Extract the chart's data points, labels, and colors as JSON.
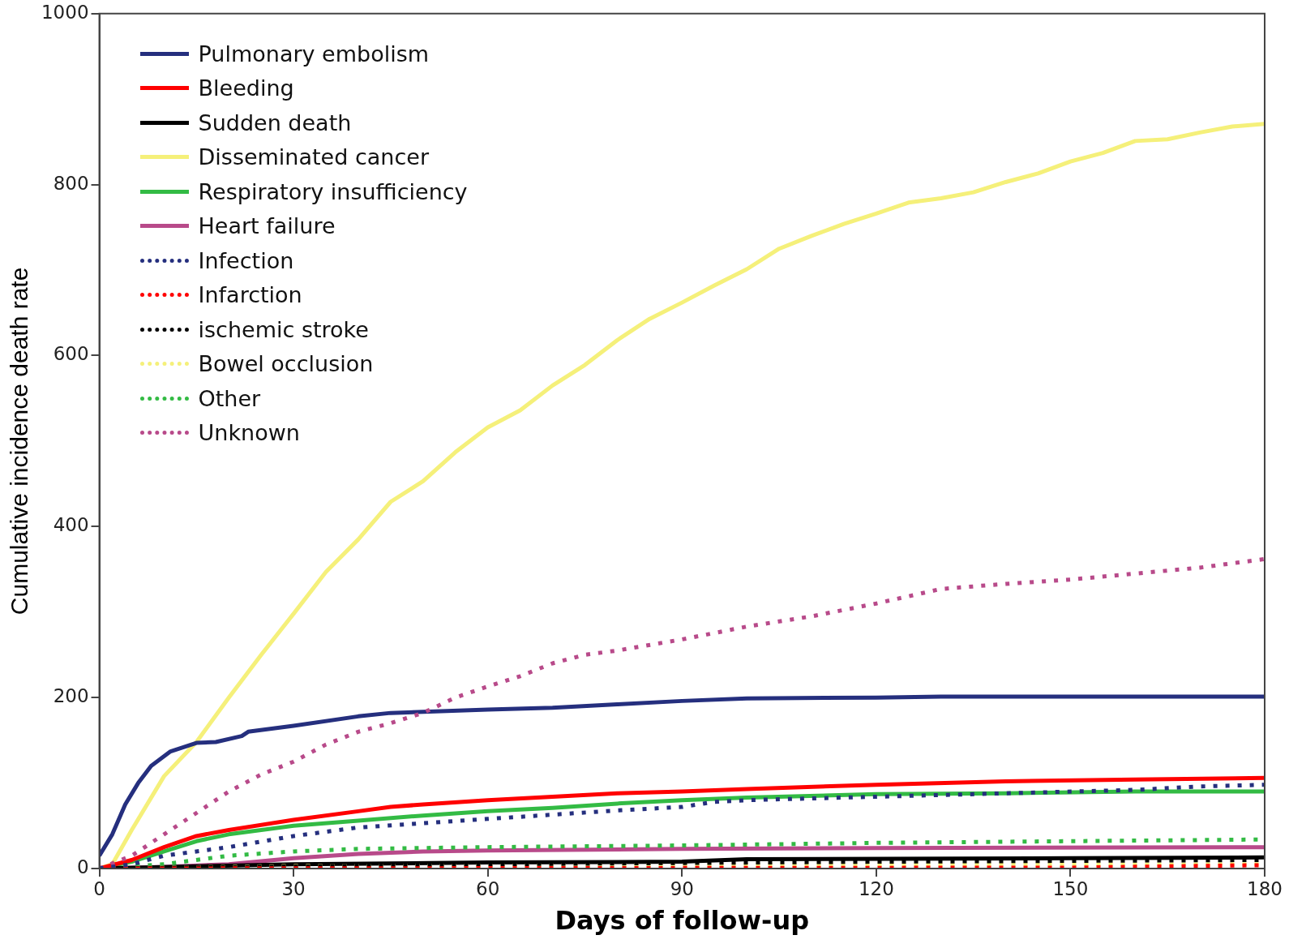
{
  "chart_data": {
    "type": "line",
    "xlabel": "Days of follow-up",
    "ylabel": "Cumulative incidence death rate",
    "xlim": [
      0,
      180
    ],
    "xticks": [
      0,
      30,
      60,
      90,
      120,
      150,
      180
    ],
    "ylim": [
      0,
      1000
    ],
    "yticks": [
      0,
      200,
      400,
      600,
      800,
      1000
    ],
    "grid": false,
    "legend": "top left",
    "marker": "none",
    "series": [
      {
        "name": "Pulmonary embolism",
        "color": "#252f7e",
        "line_style": "solid",
        "x": [
          0,
          2,
          4,
          6,
          8,
          11,
          15,
          18,
          22,
          23,
          30,
          40,
          45,
          60,
          70,
          80,
          90,
          100,
          120,
          130,
          180
        ],
        "values": [
          15,
          40,
          75,
          100,
          120,
          137,
          147,
          148,
          155,
          160,
          167,
          178,
          182,
          186,
          188,
          192,
          196,
          199,
          200,
          201,
          201
        ]
      },
      {
        "name": "Bleeding",
        "color": "#ff0000",
        "line_style": "solid",
        "x": [
          0,
          5,
          10,
          15,
          20,
          30,
          40,
          45,
          50,
          60,
          70,
          80,
          90,
          100,
          120,
          140,
          160,
          180
        ],
        "values": [
          0,
          10,
          25,
          38,
          45,
          57,
          67,
          72,
          75,
          80,
          84,
          88,
          90,
          93,
          98,
          102,
          104,
          106
        ]
      },
      {
        "name": "Sudden death",
        "color": "#000000",
        "line_style": "solid",
        "x": [
          0,
          30,
          60,
          90,
          100,
          150,
          180
        ],
        "values": [
          0,
          5,
          7,
          8,
          11,
          12,
          13
        ]
      },
      {
        "name": "Disseminated cancer",
        "color": "#f5f07a",
        "line_style": "solid",
        "x": [
          0,
          2,
          5,
          10,
          15,
          20,
          25,
          30,
          35,
          40,
          45,
          50,
          55,
          60,
          65,
          70,
          75,
          80,
          85,
          90,
          95,
          100,
          105,
          110,
          115,
          120,
          125,
          130,
          135,
          140,
          145,
          150,
          155,
          160,
          165,
          170,
          175,
          180
        ],
        "values": [
          0,
          5,
          45,
          108,
          148,
          200,
          250,
          298,
          347,
          385,
          429,
          453,
          487,
          516,
          536,
          565,
          589,
          618,
          643,
          662,
          682,
          701,
          725,
          740,
          754,
          766,
          779,
          784,
          791,
          803,
          813,
          827,
          837,
          851,
          853,
          861,
          868,
          871
        ]
      },
      {
        "name": "Respiratory insufficiency",
        "color": "#33bb44",
        "line_style": "solid",
        "x": [
          0,
          5,
          10,
          15,
          20,
          30,
          40,
          50,
          60,
          70,
          80,
          90,
          100,
          120,
          140,
          160,
          180
        ],
        "values": [
          0,
          8,
          20,
          32,
          40,
          50,
          56,
          62,
          67,
          71,
          76,
          80,
          83,
          87,
          88,
          90,
          90
        ]
      },
      {
        "name": "Heart failure",
        "color": "#b84a8a",
        "line_style": "solid",
        "x": [
          0,
          10,
          20,
          30,
          40,
          50,
          60,
          90,
          120,
          180
        ],
        "values": [
          0,
          2,
          5,
          12,
          17,
          20,
          21,
          23,
          24,
          25
        ]
      },
      {
        "name": "Infection",
        "color": "#252f7e",
        "line_style": "dotted",
        "x": [
          0,
          5,
          10,
          20,
          30,
          40,
          50,
          60,
          70,
          80,
          90,
          95,
          100,
          120,
          140,
          160,
          170,
          180
        ],
        "values": [
          0,
          5,
          15,
          25,
          38,
          48,
          53,
          58,
          63,
          68,
          72,
          78,
          80,
          84,
          88,
          92,
          96,
          98
        ]
      },
      {
        "name": "Infarction",
        "color": "#ff0000",
        "line_style": "dotted",
        "x": [
          0,
          150,
          180
        ],
        "values": [
          0,
          1,
          4
        ]
      },
      {
        "name": "ischemic stroke",
        "color": "#000000",
        "line_style": "dotted",
        "x": [
          0,
          60,
          120,
          180
        ],
        "values": [
          0,
          5,
          8,
          10
        ]
      },
      {
        "name": "Bowel occlusion",
        "color": "#f5f07a",
        "line_style": "dotted",
        "x": [
          0,
          30,
          180
        ],
        "values": [
          0,
          3,
          5
        ]
      },
      {
        "name": "Other",
        "color": "#33bb44",
        "line_style": "dotted",
        "x": [
          0,
          10,
          20,
          30,
          40,
          60,
          90,
          120,
          150,
          180
        ],
        "values": [
          0,
          5,
          15,
          20,
          23,
          25,
          27,
          30,
          32,
          34
        ]
      },
      {
        "name": "Unknown",
        "color": "#b84a8a",
        "line_style": "dotted",
        "x": [
          0,
          5,
          10,
          15,
          20,
          25,
          30,
          35,
          40,
          45,
          50,
          55,
          60,
          65,
          70,
          75,
          80,
          90,
          100,
          110,
          120,
          130,
          140,
          150,
          160,
          170,
          180
        ],
        "values": [
          0,
          15,
          40,
          65,
          90,
          110,
          125,
          145,
          160,
          170,
          182,
          200,
          213,
          225,
          240,
          250,
          255,
          268,
          283,
          295,
          310,
          327,
          333,
          338,
          345,
          352,
          362
        ]
      }
    ]
  }
}
